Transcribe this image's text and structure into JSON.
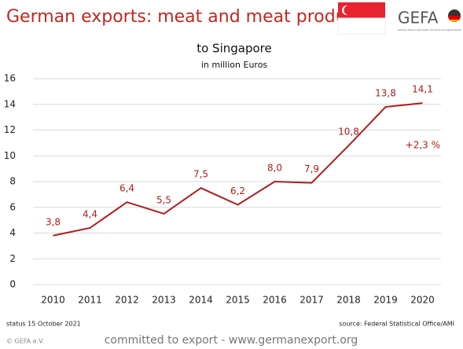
{
  "chart_data": {
    "type": "line",
    "title": "German exports: meat and meat products",
    "subtitle": "to Singapore",
    "unit_label": "in million Euros",
    "categories": [
      "2010",
      "2011",
      "2012",
      "2013",
      "2014",
      "2015",
      "2016",
      "2017",
      "2018",
      "2019",
      "2020"
    ],
    "series": [
      {
        "color": "#b01c1c",
        "values": [
          3.8,
          4.4,
          6.4,
          5.5,
          7.5,
          6.2,
          8.0,
          7.9,
          10.8,
          13.8,
          14.1
        ],
        "value_labels": [
          "3,8",
          "4,4",
          "6,4",
          "5,5",
          "7,5",
          "6,2",
          "8,0",
          "7,9",
          "10,8",
          "13,8",
          "14,1"
        ]
      }
    ],
    "ylim": [
      0,
      16
    ],
    "yticks": [
      0,
      2,
      4,
      6,
      8,
      10,
      12,
      14,
      16
    ],
    "grid": true,
    "annotation": "+2,3 %",
    "status": "status 15 October 2021",
    "source": "source: Federal Statistical Office/AMI",
    "copyright": "© GEFA e.V.",
    "footer": "committed to export - www.germanexport.org",
    "logo": "GEFA",
    "logo_caption": "German Export Association for Food and Agriproducts"
  }
}
